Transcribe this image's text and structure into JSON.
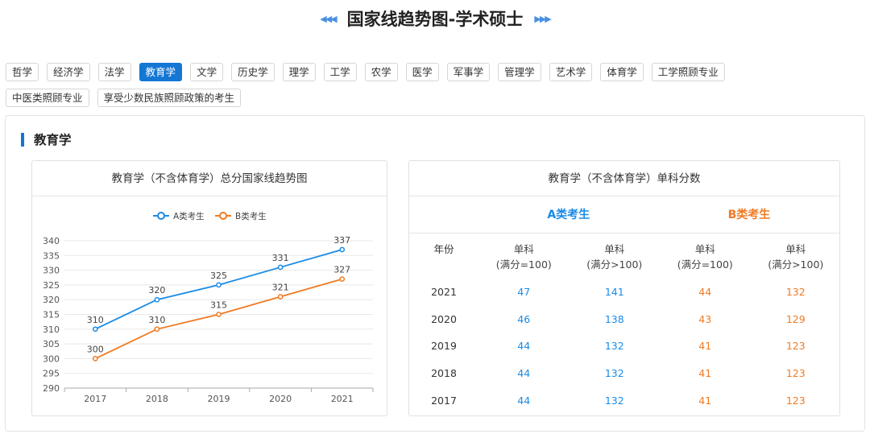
{
  "header": {
    "title": "国家线趋势图-学术硕士",
    "deco_left": "◀◀◀",
    "deco_right": "▶▶▶"
  },
  "tags": {
    "row1": [
      "哲学",
      "经济学",
      "法学",
      "教育学",
      "文学",
      "历史学",
      "理学",
      "工学",
      "农学",
      "医学",
      "军事学",
      "管理学",
      "艺术学",
      "体育学",
      "工学照顾专业"
    ],
    "row2": [
      "中医类照顾专业",
      "享受少数民族照顾政策的考生"
    ],
    "active": "教育学"
  },
  "section": {
    "title": "教育学"
  },
  "chart_card": {
    "title": "教育学（不含体育学）总分国家线趋势图"
  },
  "colors": {
    "accent": "#1477d4",
    "series_a": "#1a8be5",
    "series_b": "#f07a22"
  },
  "chart_data": {
    "type": "line",
    "title": "教育学（不含体育学）总分国家线趋势图",
    "x": [
      "2017",
      "2018",
      "2019",
      "2020",
      "2021"
    ],
    "series": [
      {
        "name": "A类考生",
        "values": [
          310,
          320,
          325,
          331,
          337
        ],
        "color": "#1a8be5"
      },
      {
        "name": "B类考生",
        "values": [
          300,
          310,
          315,
          321,
          327
        ],
        "color": "#f07a22"
      }
    ],
    "ylim": [
      290,
      340
    ],
    "yticks": [
      290,
      295,
      300,
      305,
      310,
      315,
      320,
      325,
      330,
      335,
      340
    ],
    "grid": true,
    "legend": "top-center",
    "xlabel": "",
    "ylabel": ""
  },
  "score_card": {
    "title": "教育学（不含体育学）单科分数",
    "group_a": "A类考生",
    "group_b": "B类考生",
    "col_year": "年份",
    "col_sub1_line1": "单科",
    "col_sub1_line2": "(满分=100)",
    "col_sub2_line1": "单科",
    "col_sub2_line2": "(满分>100)",
    "rows": [
      {
        "year": "2021",
        "a1": "47",
        "a2": "141",
        "b1": "44",
        "b2": "132"
      },
      {
        "year": "2020",
        "a1": "46",
        "a2": "138",
        "b1": "43",
        "b2": "129"
      },
      {
        "year": "2019",
        "a1": "44",
        "a2": "132",
        "b1": "41",
        "b2": "123"
      },
      {
        "year": "2018",
        "a1": "44",
        "a2": "132",
        "b1": "41",
        "b2": "123"
      },
      {
        "year": "2017",
        "a1": "44",
        "a2": "132",
        "b1": "41",
        "b2": "123"
      }
    ]
  }
}
